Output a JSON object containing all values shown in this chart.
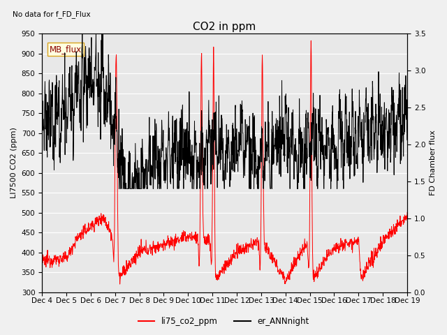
{
  "title": "CO2 in ppm",
  "top_left_text": "No data for f_FD_Flux",
  "annotation_box": "MB_flux",
  "ylabel_left": "LI7500 CO2 (ppm)",
  "ylabel_right": "FD Chamber flux",
  "ylim_left": [
    300,
    950
  ],
  "ylim_right": [
    0.0,
    3.5
  ],
  "yticks_left": [
    300,
    350,
    400,
    450,
    500,
    550,
    600,
    650,
    700,
    750,
    800,
    850,
    900,
    950
  ],
  "yticks_right": [
    0.0,
    0.5,
    1.0,
    1.5,
    2.0,
    2.5,
    3.0,
    3.5
  ],
  "xlabel_ticks": [
    "Dec 4",
    "Dec 5",
    "Dec 6",
    "Dec 7",
    "Dec 8",
    "Dec 9",
    "Dec 10",
    "Dec 11",
    "Dec 12",
    "Dec 13",
    "Dec 14",
    "Dec 15",
    "Dec 16",
    "Dec 17",
    "Dec 18",
    "Dec 19"
  ],
  "legend_labels": [
    "li75_co2_ppm",
    "er_ANNnight"
  ],
  "line_red_color": "#ff0000",
  "line_black_color": "#000000",
  "background_color": "#f0f0f0",
  "plot_bg_color": "#e8e8e8",
  "title_fontsize": 11,
  "label_fontsize": 8,
  "tick_fontsize": 7.5
}
